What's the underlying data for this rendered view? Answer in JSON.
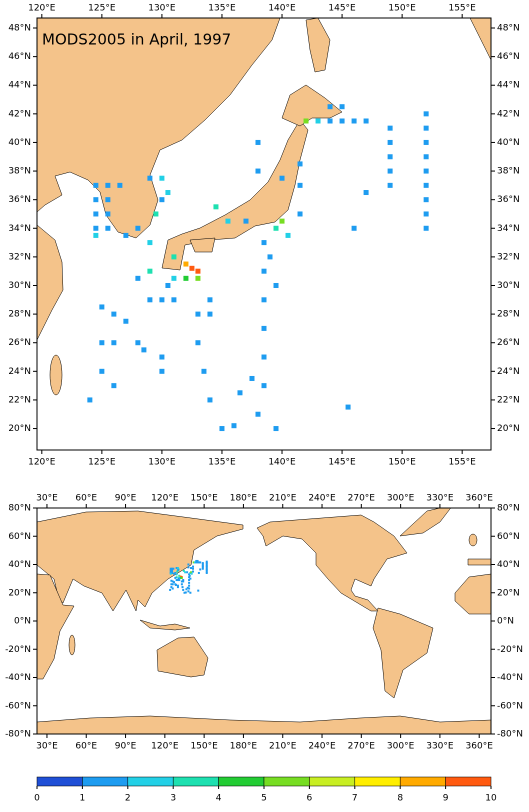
{
  "title": "MODS2005 in April, 1997",
  "regional_map": {
    "xlim": [
      119.6,
      157.4
    ],
    "ylim": [
      18.5,
      48.7
    ],
    "xticks": [
      {
        "value": 120,
        "label": "120°E"
      },
      {
        "value": 125,
        "label": "125°E"
      },
      {
        "value": 130,
        "label": "130°E"
      },
      {
        "value": 135,
        "label": "135°E"
      },
      {
        "value": 140,
        "label": "140°E"
      },
      {
        "value": 145,
        "label": "145°E"
      },
      {
        "value": 150,
        "label": "150°E"
      },
      {
        "value": 155,
        "label": "155°E"
      }
    ],
    "yticks": [
      {
        "value": 20,
        "label": "20°N"
      },
      {
        "value": 22,
        "label": "22°N"
      },
      {
        "value": 24,
        "label": "24°N"
      },
      {
        "value": 26,
        "label": "26°N"
      },
      {
        "value": 28,
        "label": "28°N"
      },
      {
        "value": 30,
        "label": "30°N"
      },
      {
        "value": 32,
        "label": "32°N"
      },
      {
        "value": 34,
        "label": "34°N"
      },
      {
        "value": 36,
        "label": "36°N"
      },
      {
        "value": 38,
        "label": "38°N"
      },
      {
        "value": 40,
        "label": "40°N"
      },
      {
        "value": 42,
        "label": "42°N"
      },
      {
        "value": 44,
        "label": "44°N"
      },
      {
        "value": 46,
        "label": "46°N"
      },
      {
        "value": 48,
        "label": "48°N"
      }
    ]
  },
  "global_map": {
    "xlim": [
      22.4,
      369
    ],
    "ylim": [
      -80,
      80
    ],
    "xticks": [
      {
        "value": 30,
        "label": "30°E"
      },
      {
        "value": 60,
        "label": "60°E"
      },
      {
        "value": 90,
        "label": "90°E"
      },
      {
        "value": 120,
        "label": "120°E"
      },
      {
        "value": 150,
        "label": "150°E"
      },
      {
        "value": 180,
        "label": "180°E"
      },
      {
        "value": 210,
        "label": "210°E"
      },
      {
        "value": 240,
        "label": "240°E"
      },
      {
        "value": 270,
        "label": "270°E"
      },
      {
        "value": 300,
        "label": "300°E"
      },
      {
        "value": 330,
        "label": "330°E"
      },
      {
        "value": 360,
        "label": "360°E"
      }
    ],
    "yticks": [
      {
        "value": -80,
        "label": "-80°N"
      },
      {
        "value": -60,
        "label": "-60°N"
      },
      {
        "value": -40,
        "label": "-40°N"
      },
      {
        "value": -20,
        "label": "-20°N"
      },
      {
        "value": 0,
        "label": "0°N"
      },
      {
        "value": 20,
        "label": "20°N"
      },
      {
        "value": 40,
        "label": "40°N"
      },
      {
        "value": 60,
        "label": "60°N"
      },
      {
        "value": 80,
        "label": "80°N"
      }
    ]
  },
  "points": [
    [
      124.5,
      37,
      1
    ],
    [
      125.5,
      37,
      1
    ],
    [
      126.5,
      37,
      1
    ],
    [
      124.5,
      36,
      1
    ],
    [
      125.5,
      36,
      1
    ],
    [
      124.5,
      35,
      1
    ],
    [
      125.5,
      35,
      1
    ],
    [
      124.5,
      34,
      1
    ],
    [
      125.5,
      34,
      1
    ],
    [
      124.5,
      33.5,
      2
    ],
    [
      129,
      37.5,
      1
    ],
    [
      130,
      37.5,
      2
    ],
    [
      130.5,
      36.5,
      2
    ],
    [
      130,
      36,
      1
    ],
    [
      129.5,
      35,
      3
    ],
    [
      128,
      34,
      1
    ],
    [
      127,
      33.5,
      1
    ],
    [
      129,
      33,
      2
    ],
    [
      131,
      32,
      3
    ],
    [
      132,
      31.5,
      8
    ],
    [
      132.5,
      31.2,
      9.5
    ],
    [
      133,
      31,
      9.5
    ],
    [
      133,
      30.5,
      5
    ],
    [
      132,
      30.5,
      4
    ],
    [
      131,
      30.5,
      2
    ],
    [
      130.5,
      30,
      1
    ],
    [
      129,
      31,
      3
    ],
    [
      128,
      30.5,
      1
    ],
    [
      134.5,
      35.5,
      3
    ],
    [
      135.5,
      34.5,
      2
    ],
    [
      137,
      34.5,
      1
    ],
    [
      139.5,
      34,
      3
    ],
    [
      140,
      34.5,
      5
    ],
    [
      140.5,
      33.5,
      2
    ],
    [
      139,
      32,
      1
    ],
    [
      141.5,
      35,
      1
    ],
    [
      141.5,
      37,
      1
    ],
    [
      141.5,
      38.5,
      1
    ],
    [
      142,
      41.5,
      5
    ],
    [
      143,
      41.5,
      2
    ],
    [
      144,
      41.5,
      1
    ],
    [
      145,
      41.5,
      1
    ],
    [
      146,
      41.5,
      1
    ],
    [
      147,
      41.5,
      1
    ],
    [
      144,
      42.5,
      1
    ],
    [
      145,
      42.5,
      1
    ],
    [
      149,
      41,
      1
    ],
    [
      149,
      40,
      1
    ],
    [
      149,
      39,
      1
    ],
    [
      149,
      38,
      1
    ],
    [
      149,
      37,
      1
    ],
    [
      152,
      42,
      1
    ],
    [
      152,
      41,
      1
    ],
    [
      152,
      40,
      1
    ],
    [
      152,
      39,
      1
    ],
    [
      152,
      38,
      1
    ],
    [
      152,
      37,
      1
    ],
    [
      152,
      36,
      1
    ],
    [
      152,
      35,
      1
    ],
    [
      152,
      34,
      1
    ],
    [
      138.5,
      33,
      1
    ],
    [
      138.5,
      31,
      1
    ],
    [
      138.5,
      29,
      1
    ],
    [
      138.5,
      27,
      1
    ],
    [
      138.5,
      25,
      1
    ],
    [
      138.5,
      23,
      1
    ],
    [
      138,
      21,
      1
    ],
    [
      136,
      20.2,
      1
    ],
    [
      135,
      20,
      1
    ],
    [
      134,
      22,
      1
    ],
    [
      133.5,
      24,
      1
    ],
    [
      133,
      26,
      1
    ],
    [
      133,
      28,
      1
    ],
    [
      134,
      29,
      1
    ],
    [
      136.5,
      22.5,
      1
    ],
    [
      137.5,
      23.5,
      1
    ],
    [
      125,
      28.5,
      1
    ],
    [
      126,
      28,
      1
    ],
    [
      127,
      27.5,
      1
    ],
    [
      126,
      26,
      1
    ],
    [
      125,
      26,
      1
    ],
    [
      128,
      26,
      1
    ],
    [
      128.5,
      25.5,
      1
    ],
    [
      130,
      25,
      1
    ],
    [
      130,
      24,
      1
    ],
    [
      125,
      24,
      1
    ],
    [
      124,
      22,
      1
    ],
    [
      126,
      23,
      1
    ],
    [
      129,
      29,
      1
    ],
    [
      130,
      29,
      1
    ],
    [
      131,
      29,
      1
    ],
    [
      134,
      28,
      1
    ],
    [
      139.5,
      20,
      1
    ],
    [
      139.5,
      30,
      1
    ],
    [
      145.5,
      21.5,
      1
    ],
    [
      147,
      36.5,
      1
    ],
    [
      146,
      34,
      1
    ],
    [
      140,
      37.5,
      1
    ],
    [
      138,
      40,
      1
    ],
    [
      138,
      38,
      1
    ]
  ],
  "colorbar": {
    "ticks": [
      0,
      1,
      2,
      3,
      4,
      5,
      6,
      7,
      8,
      9,
      10
    ],
    "colors": [
      "#1f4fd6",
      "#1e9cf0",
      "#22d0e6",
      "#1ee0b0",
      "#22cc33",
      "#77dd22",
      "#c8ee22",
      "#ffee00",
      "#ffaa00",
      "#ff5a10"
    ]
  }
}
